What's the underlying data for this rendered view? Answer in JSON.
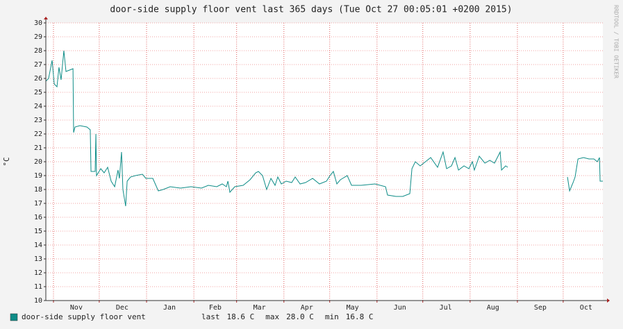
{
  "chart_data": {
    "type": "line",
    "title": "door-side supply floor vent last 365 days (Tue Oct 27 00:05:01 +0200 2015)",
    "y_label": "°C",
    "watermark": "RRDTOOL / TOBI OETIKER",
    "xlim": [
      0,
      365
    ],
    "xticks": [
      {
        "value": 20,
        "label": "Nov"
      },
      {
        "value": 50,
        "label": "Dec"
      },
      {
        "value": 81,
        "label": "Jan"
      },
      {
        "value": 111,
        "label": "Feb"
      },
      {
        "value": 140,
        "label": "Mar"
      },
      {
        "value": 171,
        "label": "Apr"
      },
      {
        "value": 201,
        "label": "May"
      },
      {
        "value": 232,
        "label": "Jun"
      },
      {
        "value": 262,
        "label": "Jul"
      },
      {
        "value": 293,
        "label": "Aug"
      },
      {
        "value": 324,
        "label": "Sep"
      },
      {
        "value": 354,
        "label": "Oct"
      }
    ],
    "xgrid": [
      5,
      35,
      66,
      97,
      125,
      156,
      186,
      217,
      247,
      278,
      309,
      339
    ],
    "ylim": [
      10,
      30
    ],
    "yticks": [
      10,
      11,
      12,
      13,
      14,
      15,
      16,
      17,
      18,
      19,
      20,
      21,
      22,
      23,
      24,
      25,
      26,
      27,
      28,
      29,
      30
    ],
    "grid": true,
    "series": [
      {
        "name": "door-side supply floor vent",
        "color": "#0e8c87",
        "x": [
          0,
          1.8,
          4.1,
          5.5,
          7.3,
          8.6,
          10,
          11.8,
          13.2,
          15.5,
          17.8,
          18.2,
          19.1,
          22.3,
          26.9,
          29.1,
          29.6,
          32.3,
          32.8,
          33.2,
          36,
          38.2,
          40.5,
          42.8,
          45.1,
          47.3,
          48.2,
          49.6,
          50.5,
          52.3,
          53.3,
          55.5,
          58.7,
          63.3,
          65.5,
          70.1,
          73.7,
          76.9,
          81.5,
          88.3,
          95.1,
          102,
          106.5,
          112,
          115.6,
          118.3,
          119.3,
          120.6,
          123.8,
          129.3,
          133.8,
          137.5,
          139.3,
          142,
          144.7,
          147.5,
          150.2,
          152,
          154.3,
          157.5,
          161.1,
          163.4,
          166.6,
          170.2,
          174.8,
          179.3,
          183.9,
          186.2,
          188.4,
          190.7,
          193,
          197.5,
          200.3,
          206.6,
          215.7,
          222.6,
          223.9,
          229.4,
          233.9,
          238.5,
          239.9,
          242.1,
          245.3,
          247.6,
          252.2,
          256.7,
          260.3,
          262.6,
          265.8,
          268.1,
          270.4,
          274,
          277.2,
          279.5,
          280.8,
          284,
          287.7,
          290.9,
          294,
          297.7,
          298.6,
          301.3,
          302.7,
          303.5,
          341.8,
          343.2,
          345.5,
          346.8,
          348.7,
          352.3,
          355.9,
          359.1,
          361.4,
          362.8,
          363.2,
          365
        ],
        "values": [
          25.8,
          26,
          27.3,
          25.6,
          25.4,
          26.8,
          25.9,
          28,
          26.5,
          26.6,
          26.7,
          22.1,
          22.5,
          22.6,
          22.5,
          22.3,
          19.3,
          19.3,
          22,
          19,
          19.5,
          19.2,
          19.6,
          18.6,
          18.2,
          19.4,
          18.8,
          20.7,
          18,
          16.8,
          18.6,
          18.9,
          19,
          19.1,
          18.8,
          18.8,
          17.9,
          18,
          18.2,
          18.1,
          18.2,
          18.1,
          18.3,
          18.2,
          18.4,
          18.2,
          18.6,
          17.8,
          18.2,
          18.3,
          18.7,
          19.2,
          19.3,
          19,
          18,
          18.8,
          18.3,
          18.9,
          18.4,
          18.6,
          18.5,
          18.9,
          18.4,
          18.5,
          18.8,
          18.4,
          18.6,
          19,
          19.3,
          18.4,
          18.7,
          19,
          18.3,
          18.3,
          18.4,
          18.2,
          17.6,
          17.5,
          17.5,
          17.7,
          19.5,
          20,
          19.7,
          19.9,
          20.3,
          19.6,
          20.7,
          19.5,
          19.7,
          20.3,
          19.4,
          19.7,
          19.5,
          20,
          19.4,
          20.4,
          19.9,
          20.1,
          19.9,
          20.7,
          19.4,
          19.7,
          19.6,
          null,
          18.9,
          17.9,
          18.5,
          18.9,
          20.2,
          20.3,
          20.2,
          20.2,
          20,
          20.3,
          18.6,
          18.6
        ]
      }
    ],
    "legend_stats": [
      {
        "name": "last",
        "text": "18.6 C"
      },
      {
        "name": "max",
        "text": "28.0 C"
      },
      {
        "name": "min",
        "text": "16.8 C"
      }
    ]
  }
}
